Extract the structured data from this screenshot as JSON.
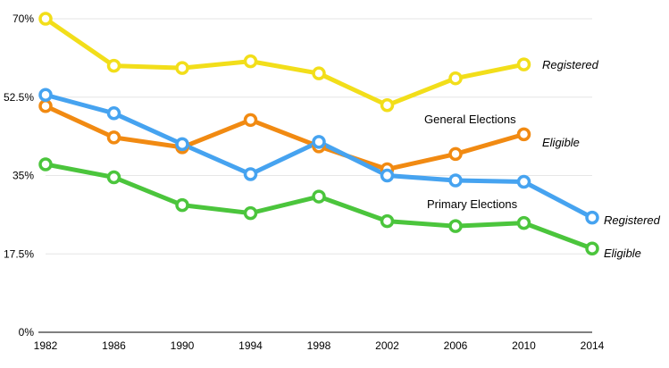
{
  "chart_data": {
    "type": "line",
    "x": [
      "1982",
      "1986",
      "1990",
      "1994",
      "1998",
      "2002",
      "2006",
      "2010",
      "2014"
    ],
    "ylim": [
      0,
      70
    ],
    "yticks": [
      "0%",
      "17.5%",
      "35%",
      "52.5%",
      "70%"
    ],
    "ytick_values": [
      0,
      17.5,
      35,
      52.5,
      70
    ],
    "grid": true,
    "series": [
      {
        "name": "Registered",
        "group": "General Elections",
        "color": "#F2DE1A",
        "values": [
          70,
          59.5,
          59,
          60.5,
          57.8,
          50.7,
          56.7,
          59.8,
          null
        ]
      },
      {
        "name": "Eligible",
        "group": "General Elections",
        "color": "#F18A12",
        "values": [
          50.5,
          43.5,
          41.3,
          47.4,
          41.5,
          36.4,
          39.8,
          44.2,
          null
        ]
      },
      {
        "name": "Registered",
        "group": "Primary Elections",
        "color": "#46A3F0",
        "values": [
          53,
          48.9,
          42,
          35.3,
          42.5,
          35,
          33.9,
          33.6,
          25.6
        ]
      },
      {
        "name": "Eligible",
        "group": "Primary Elections",
        "color": "#4BC53C",
        "values": [
          37.5,
          34.6,
          28.4,
          26.6,
          30.3,
          24.8,
          23.7,
          24.4,
          18.7
        ]
      }
    ],
    "annotations": [
      "General Elections",
      "Primary Elections"
    ],
    "series_labels": [
      "Registered",
      "Eligible",
      "Registered",
      "Eligible"
    ]
  }
}
